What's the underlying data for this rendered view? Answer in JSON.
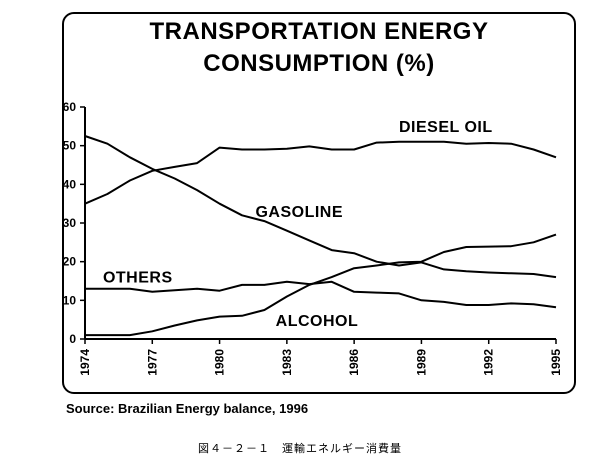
{
  "chart_data": {
    "type": "line",
    "title_line1": "TRANSPORTATION ENERGY",
    "title_line2": "CONSUMPTION   (%)",
    "xlabel": "",
    "ylabel": "",
    "ylim": [
      0,
      60
    ],
    "yticks": [
      0,
      10,
      20,
      30,
      40,
      50,
      60
    ],
    "xlim": [
      1974,
      1995
    ],
    "xticks": [
      1974,
      1977,
      1980,
      1983,
      1986,
      1989,
      1992,
      1995
    ],
    "x": [
      1974,
      1975,
      1976,
      1977,
      1978,
      1979,
      1980,
      1981,
      1982,
      1983,
      1984,
      1985,
      1986,
      1987,
      1988,
      1989,
      1990,
      1991,
      1992,
      1993,
      1994,
      1995
    ],
    "series": [
      {
        "name": "DIESEL OIL",
        "label_anchor": [
          1988.0,
          53.5
        ],
        "values": [
          35,
          37.5,
          41,
          43.5,
          44.5,
          45.5,
          49.5,
          49,
          49,
          49.2,
          49.8,
          49,
          49,
          50.8,
          51,
          51,
          51,
          50.5,
          50.7,
          50.5,
          49,
          47
        ]
      },
      {
        "name": "GASOLINE",
        "label_anchor": [
          1981.6,
          31.5
        ],
        "values": [
          52.5,
          50.5,
          47,
          44,
          41.5,
          38.5,
          35,
          32,
          30.5,
          28,
          25.5,
          23,
          22.2,
          20,
          19,
          19.8,
          18,
          17.5,
          17.2,
          17,
          16.8,
          16
        ]
      },
      {
        "name": "OTHERS",
        "label_anchor": [
          1974.8,
          14.6
        ],
        "values": [
          13,
          13,
          13,
          12.2,
          12.6,
          13,
          12.5,
          14,
          14,
          14.8,
          14.2,
          14.8,
          12.2,
          12,
          11.8,
          10,
          9.6,
          8.8,
          8.8,
          9.2,
          9,
          8.2
        ]
      },
      {
        "name": "ALCOHOL",
        "label_anchor": [
          1982.5,
          3.3
        ],
        "values": [
          1,
          1,
          1,
          2,
          3.5,
          4.8,
          5.8,
          6,
          7.5,
          11,
          14,
          16,
          18.3,
          19,
          19.8,
          20,
          22.5,
          23.8,
          23.9,
          24,
          25,
          27
        ]
      }
    ],
    "source": "Source: Brazilian Energy balance, 1996",
    "caption": "図４－２－１　運輸エネルギー消費量"
  }
}
